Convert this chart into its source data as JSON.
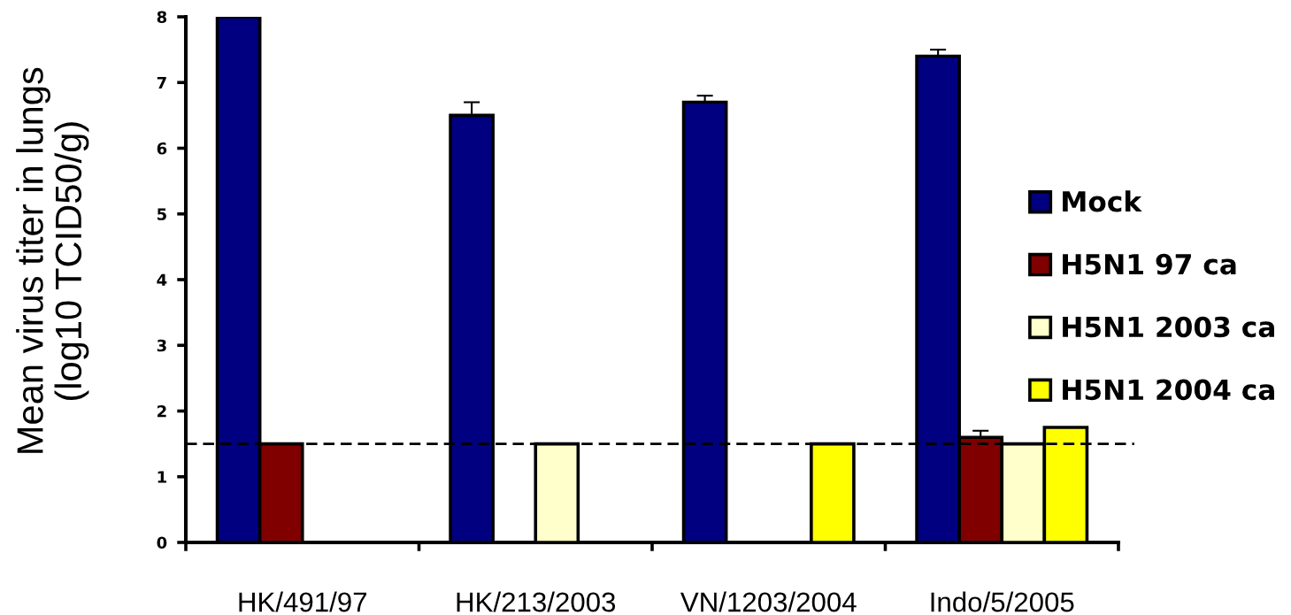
{
  "chart_data": {
    "type": "bar",
    "ylabel": "Mean virus titer in lungs\n(log10 TCID50/g)",
    "categories": [
      "HK/491/97",
      "HK/213/2003",
      "VN/1203/2004",
      "Indo/5/2005"
    ],
    "series": [
      {
        "name": "Mock",
        "color": "#000080",
        "values": [
          8,
          6.5,
          6.7,
          7.4
        ],
        "errors": [
          null,
          [
            6.5,
            6.7
          ],
          [
            6.7,
            6.8
          ],
          [
            7.4,
            7.5
          ]
        ]
      },
      {
        "name": "H5N1 97 ca",
        "color": "#800000",
        "values": [
          1.5,
          null,
          null,
          1.6
        ],
        "errors": [
          null,
          null,
          null,
          [
            1.6,
            1.7
          ]
        ]
      },
      {
        "name": "H5N1 2003 ca",
        "color": "#ffffcc",
        "values": [
          null,
          1.5,
          null,
          1.5
        ]
      },
      {
        "name": "H5N1 2004 ca",
        "color": "#ffff00",
        "values": [
          null,
          null,
          1.5,
          1.75
        ]
      }
    ],
    "ylim": [
      0,
      8
    ],
    "yticks": [
      0,
      1,
      2,
      3,
      4,
      5,
      6,
      7,
      8
    ],
    "ref_lines": [
      {
        "axis": "y",
        "value": 1.5,
        "line_style": "dashed",
        "color": "#000000"
      }
    ],
    "legend": "right"
  }
}
